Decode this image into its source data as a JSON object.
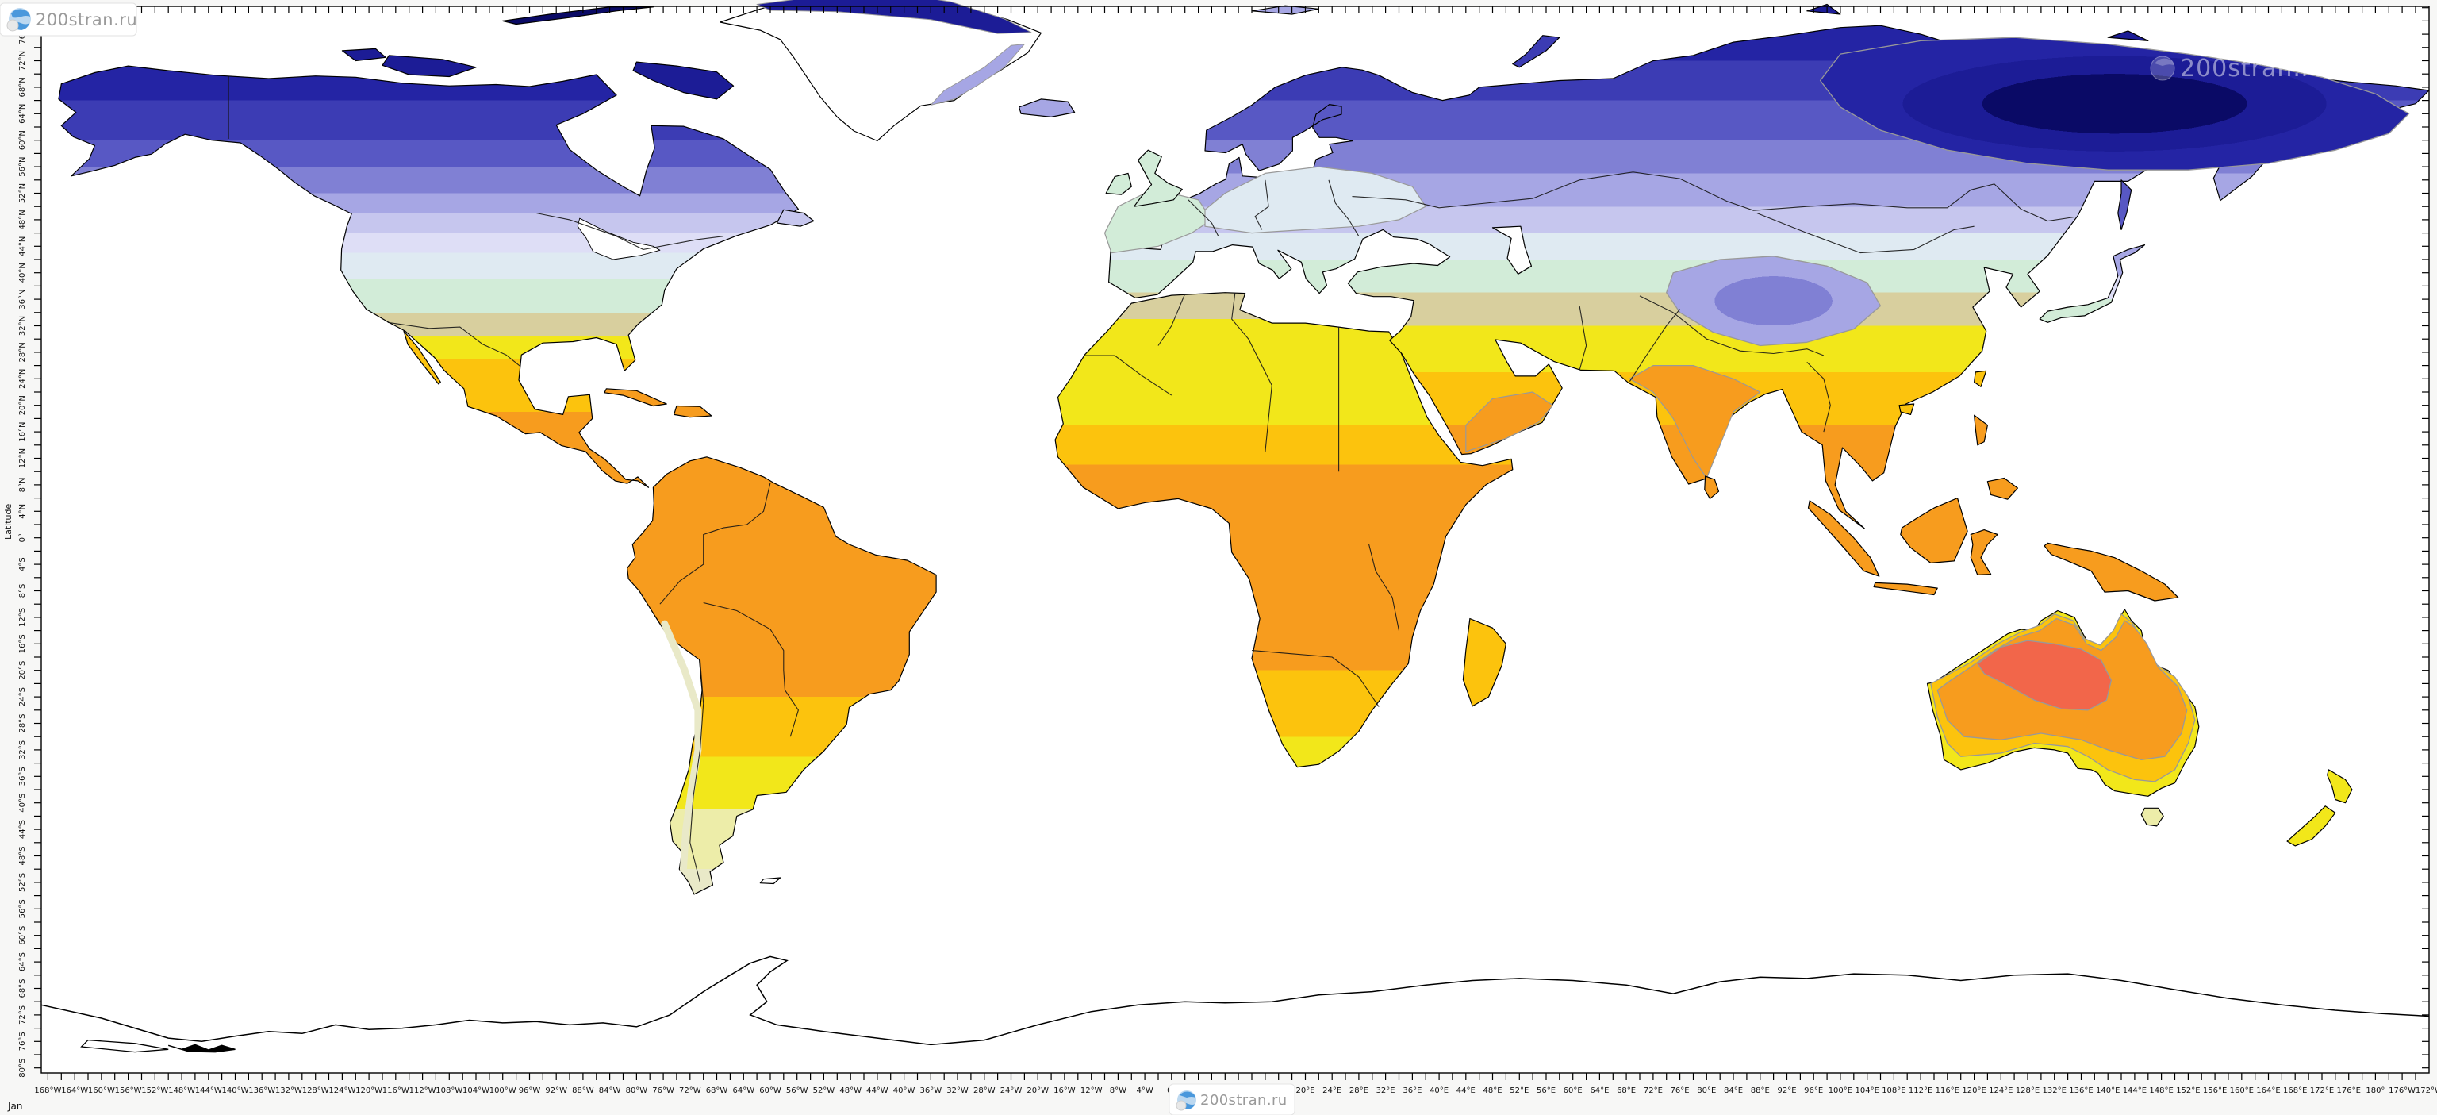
{
  "watermark": {
    "site": "200stran.ru"
  },
  "axis": {
    "y_title": "Latitude",
    "month": "Jan",
    "lat_labels": [
      "76°N",
      "72°N",
      "68°N",
      "64°N",
      "60°N",
      "56°N",
      "52°N",
      "48°N",
      "44°N",
      "40°N",
      "36°N",
      "32°N",
      "28°N",
      "24°N",
      "20°N",
      "16°N",
      "12°N",
      "8°N",
      "4°N",
      "0°",
      "4°S",
      "8°S",
      "12°S",
      "16°S",
      "20°S",
      "24°S",
      "28°S",
      "32°S",
      "36°S",
      "40°S",
      "44°S",
      "48°S",
      "52°S",
      "56°S",
      "60°S",
      "64°S",
      "68°S",
      "72°S",
      "76°S",
      "80°S"
    ],
    "lon_labels": [
      "168°W",
      "164°W",
      "160°W",
      "156°W",
      "152°W",
      "148°W",
      "144°W",
      "140°W",
      "136°W",
      "132°W",
      "128°W",
      "124°W",
      "120°W",
      "116°W",
      "112°W",
      "108°W",
      "104°W",
      "100°W",
      "96°W",
      "92°W",
      "88°W",
      "84°W",
      "80°W",
      "76°W",
      "72°W",
      "68°W",
      "64°W",
      "60°W",
      "56°W",
      "52°W",
      "48°W",
      "44°W",
      "40°W",
      "36°W",
      "32°W",
      "28°W",
      "24°W",
      "20°W",
      "16°W",
      "12°W",
      "8°W",
      "4°W",
      "0°",
      "4°E",
      "8°E",
      "12°E",
      "16°E",
      "20°E",
      "24°E",
      "28°E",
      "32°E",
      "36°E",
      "40°E",
      "44°E",
      "48°E",
      "52°E",
      "56°E",
      "60°E",
      "64°E",
      "68°E",
      "72°E",
      "76°E",
      "80°E",
      "84°E",
      "88°E",
      "92°E",
      "96°E",
      "100°E",
      "104°E",
      "108°E",
      "112°E",
      "116°E",
      "120°E",
      "124°E",
      "128°E",
      "132°E",
      "136°E",
      "140°E",
      "144°E",
      "148°E",
      "152°E",
      "156°E",
      "160°E",
      "164°E",
      "168°E",
      "172°E",
      "176°E",
      "180°",
      "176°W",
      "172°W"
    ]
  },
  "palette": {
    "deep_navy": "#0a0a66",
    "navy": "#1c1c96",
    "navy2": "#2424a4",
    "blue": "#3c3cb4",
    "blue2": "#5858c4",
    "purple": "#8080d4",
    "lavender": "#a6a6e4",
    "lavender2": "#c6c6ee",
    "lavender3": "#dedef6",
    "ice": "#dfeaf2",
    "pale_green": "#d2ecd8",
    "khaki": "#d8cf9e",
    "yellow": "#f2e71a",
    "gold": "#fcc30d",
    "orange": "#f79c1e",
    "red": "#f2664a",
    "cream": "#ededa9",
    "cream2": "#e9e9c8",
    "contour": "#999999",
    "coast": "#000000",
    "border": "#151515",
    "ocean": "#ffffff",
    "page_bg": "#f7f7f6",
    "label": "#111111",
    "globe_blue": "#4a98dc",
    "globe_gray": "#e0e0e0"
  },
  "regions": [
    {
      "region": "Northeast Siberia",
      "level": "coldest"
    },
    {
      "region": "Canadian Arctic islands, north Greenland",
      "level": "very cold"
    },
    {
      "region": "Canada, Scandinavia, Central Asia",
      "level": "cold (blue-lavender bands)"
    },
    {
      "region": "Western and Central Europe, Japan, NW USA",
      "level": "mild (pale green / pale blue)"
    },
    {
      "region": "Sahara, Mexico, South China, south Brazil",
      "level": "warm (yellow / gold)"
    },
    {
      "region": "Amazon, Central Africa, India, Southeast Asia, north Australia",
      "level": "hot (orange)"
    },
    {
      "region": "Central Australia",
      "level": "hottest (red)"
    },
    {
      "region": "Antarctica",
      "level": "outline only, no data"
    }
  ]
}
